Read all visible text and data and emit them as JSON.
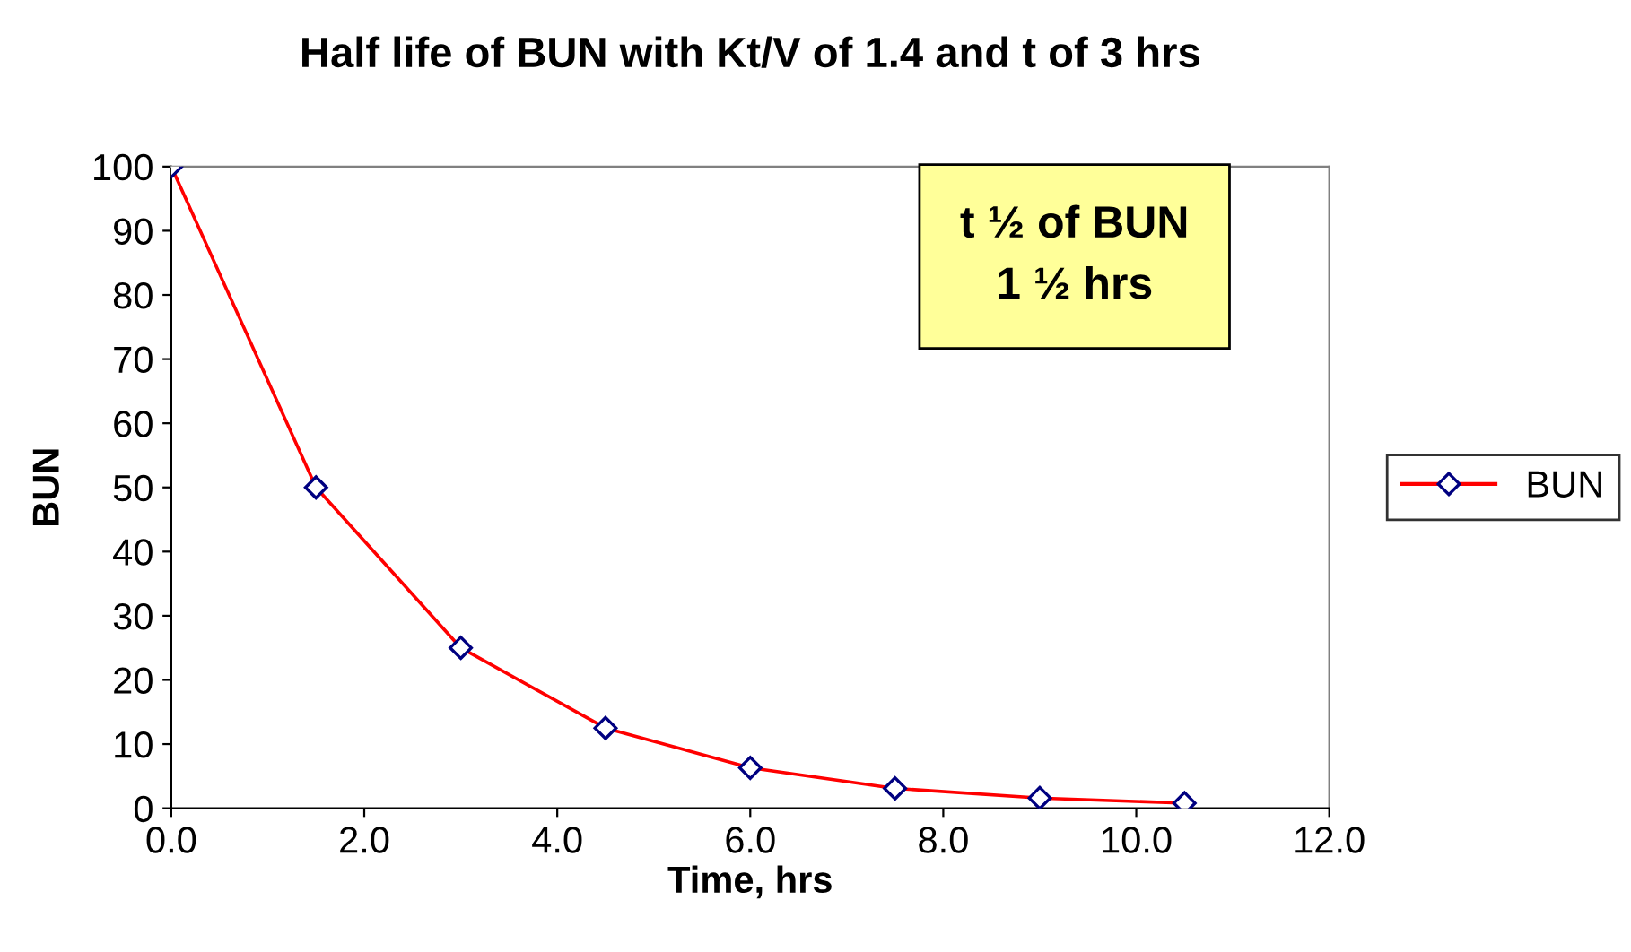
{
  "chart_data": {
    "type": "line",
    "title": "Half life of BUN with Kt/V of 1.4 and t of 3 hrs",
    "xlabel": "Time, hrs",
    "ylabel": "BUN",
    "x": [
      0,
      1.5,
      3,
      4.5,
      6,
      7.5,
      9,
      10.5
    ],
    "series": [
      {
        "name": "BUN",
        "color": "#ff0000",
        "values": [
          100,
          50,
          25,
          12.5,
          6.3,
          3.1,
          1.6,
          0.8
        ]
      }
    ],
    "xlim": [
      0,
      12
    ],
    "xticks": [
      {
        "value": 0,
        "label": "0.0"
      },
      {
        "value": 2,
        "label": "2.0"
      },
      {
        "value": 4,
        "label": "4.0"
      },
      {
        "value": 6,
        "label": "6.0"
      },
      {
        "value": 8,
        "label": "8.0"
      },
      {
        "value": 10,
        "label": "10.0"
      },
      {
        "value": 12,
        "label": "12.0"
      }
    ],
    "ylim": [
      0,
      100
    ],
    "yticks": [
      0,
      10,
      20,
      30,
      40,
      50,
      60,
      70,
      80,
      90,
      100
    ],
    "annotations": [
      "t ½ of BUN\n1 ½ hrs"
    ],
    "marker": "diamond",
    "line_style": "solid",
    "grid": false,
    "legend": "right"
  }
}
